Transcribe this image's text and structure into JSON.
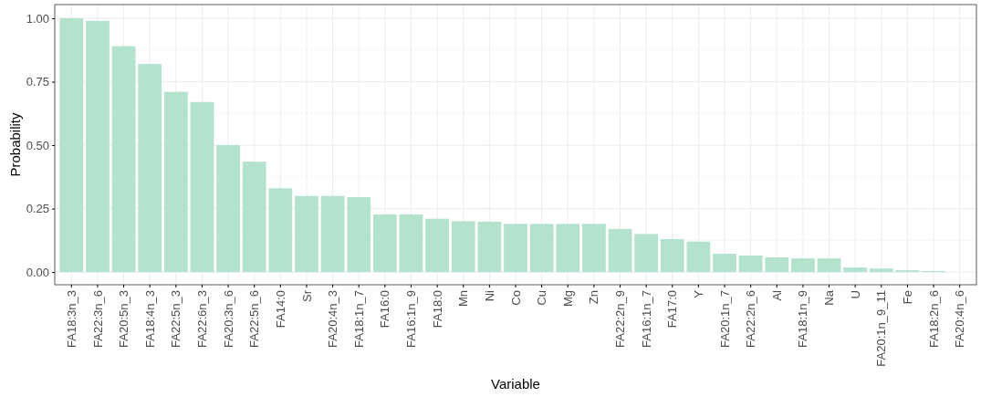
{
  "chart_data": {
    "type": "bar",
    "xlabel": "Variable",
    "ylabel": "Probability",
    "categories": [
      "FA18:3n_3",
      "FA22:3n_6",
      "FA20:5n_3",
      "FA18:4n_3",
      "FA22:5n_3",
      "FA22:6n_3",
      "FA20:3n_6",
      "FA22:5n_6",
      "FA14:0",
      "Sr",
      "FA20:4n_3",
      "FA18:1n_7",
      "FA16:0",
      "FA16:1n_9",
      "FA18:0",
      "Mn",
      "Ni",
      "Co",
      "Cu",
      "Mg",
      "Zn",
      "FA22:2n_9",
      "FA16:1n_7",
      "FA17:0",
      "Y",
      "FA20:1n_7",
      "FA22:2n_6",
      "Al",
      "FA18:1n_9",
      "Na",
      "U",
      "FA20:1n_9_11",
      "Fe",
      "FA18:2n_6",
      "FA20:4n_6"
    ],
    "values": [
      1.0,
      0.99,
      0.89,
      0.82,
      0.71,
      0.67,
      0.5,
      0.435,
      0.33,
      0.3,
      0.3,
      0.295,
      0.227,
      0.227,
      0.21,
      0.2,
      0.198,
      0.19,
      0.19,
      0.19,
      0.19,
      0.17,
      0.15,
      0.13,
      0.12,
      0.072,
      0.065,
      0.058,
      0.054,
      0.054,
      0.018,
      0.014,
      0.007,
      0.004,
      null
    ],
    "color": "#b3e2cd",
    "ylim": [
      -0.05,
      1.054
    ],
    "yticks": [
      {
        "value": 0,
        "label": "0.00"
      },
      {
        "value": 0.25,
        "label": "0.25"
      },
      {
        "value": 0.5,
        "label": "0.50"
      },
      {
        "value": 0.75,
        "label": "0.75"
      },
      {
        "value": 1,
        "label": "1.00"
      }
    ],
    "grid": true
  }
}
